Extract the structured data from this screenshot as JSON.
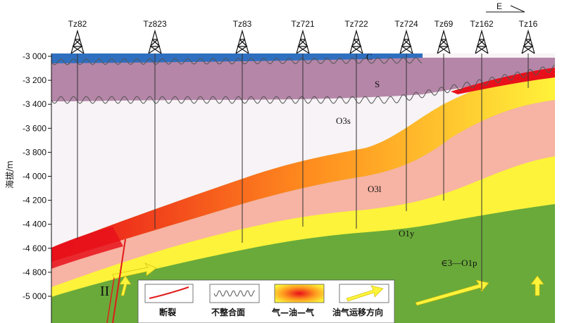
{
  "direction": "E",
  "y_axis": {
    "label": "海拔/m",
    "ticks": [
      "-3 000",
      "-3 200",
      "-3 400",
      "-3 600",
      "-3 800",
      "-4 000",
      "-4 200",
      "-4 400",
      "-4 600",
      "-4 800",
      "-5 000"
    ]
  },
  "wells": [
    "Tz82",
    "Tz823",
    "Tz83",
    "Tz721",
    "Tz722",
    "Tz724",
    "Tz69",
    "Tz162",
    "Tz16"
  ],
  "units": {
    "c": "C",
    "s": "S",
    "o3s": "O3s",
    "o3l": "O3l",
    "o1y": "O1y",
    "cambrian": "∈3—O1p"
  },
  "fault_label": "II",
  "legend": {
    "fault": "断裂",
    "unconformity": "不整合面",
    "gas_oil_gas": "气—油—气",
    "migration": "油气运移方向"
  },
  "colors": {
    "carboniferous": "#2f6fc0",
    "silurian": "#b586a8",
    "o3s": "#f7f3f6",
    "pink": "#f7b3a3",
    "yellow": "#fcf33a",
    "orange": "#ff9a1e",
    "red": "#e8101a",
    "green_dark": "#6aaa3a",
    "green_light": "#9ccb5a",
    "fault": "#e01a1a"
  }
}
